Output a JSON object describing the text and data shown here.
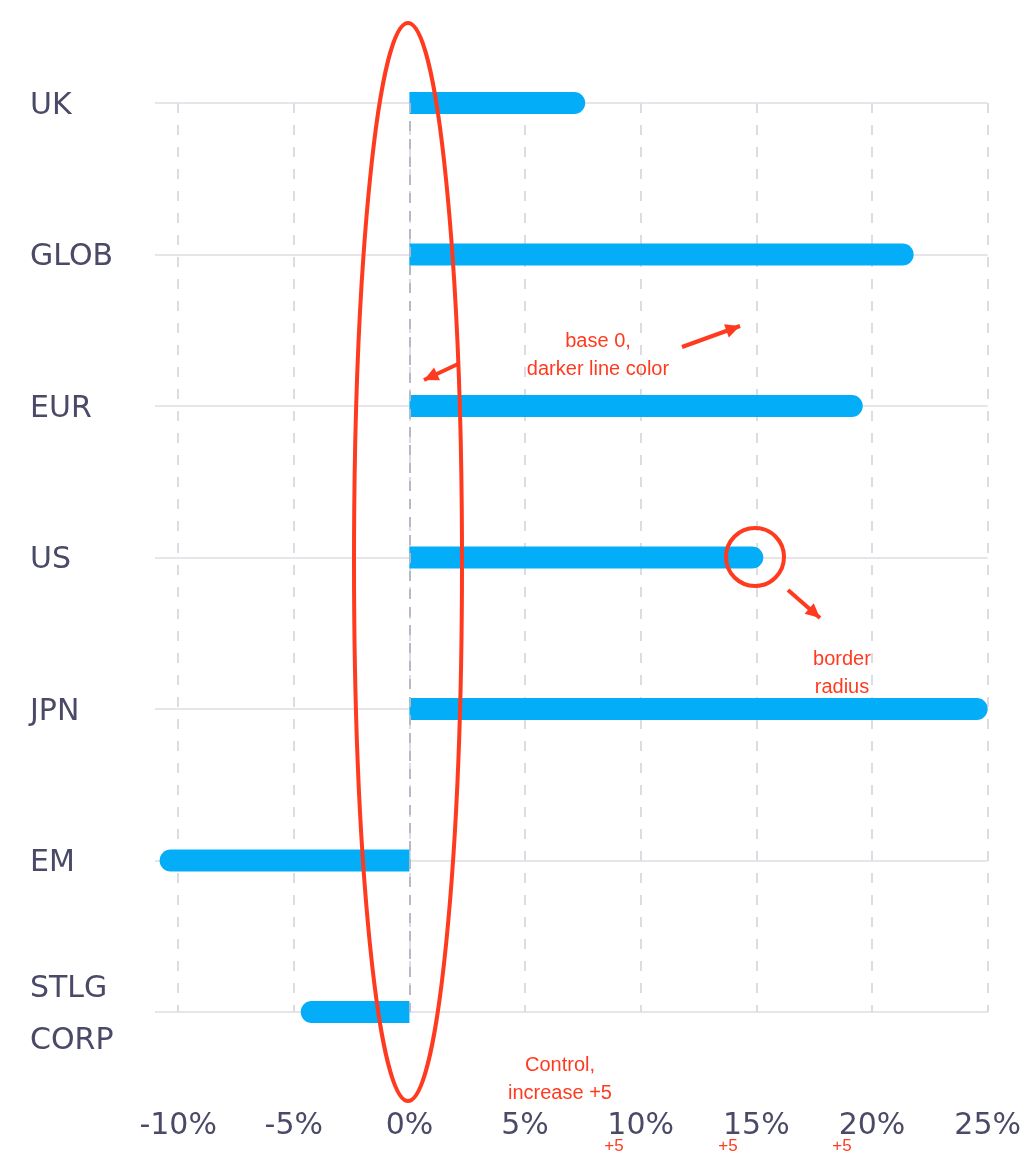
{
  "chart_data": {
    "type": "bar",
    "orientation": "horizontal",
    "categories": [
      "UK",
      "GLOB",
      "EUR",
      "US",
      "JPN",
      "EM",
      "STLG CORP"
    ],
    "values": [
      7.6,
      21.8,
      19.6,
      15.3,
      25,
      -10.8,
      -4.7
    ],
    "color": "#03adf8",
    "xlim": [
      -11,
      25
    ],
    "xticks": [
      {
        "value": -10,
        "label": "-10%"
      },
      {
        "value": -5,
        "label": "-5%"
      },
      {
        "value": 0,
        "label": "0%"
      },
      {
        "value": 5,
        "label": "5%"
      },
      {
        "value": 10,
        "label": "10%"
      },
      {
        "value": 15,
        "label": "15%"
      },
      {
        "value": 20,
        "label": "20%"
      },
      {
        "value": 25,
        "label": "25%"
      }
    ],
    "grid": true,
    "ref_lines": [
      {
        "axis": "x",
        "value": 0,
        "color": "#b4b8c8",
        "line_style": "dashed"
      }
    ],
    "annotations": [
      "base 0,\ndarker line color",
      "border\nradius",
      "Control,\nincrease +5",
      "+5",
      "+5",
      "+5"
    ]
  }
}
